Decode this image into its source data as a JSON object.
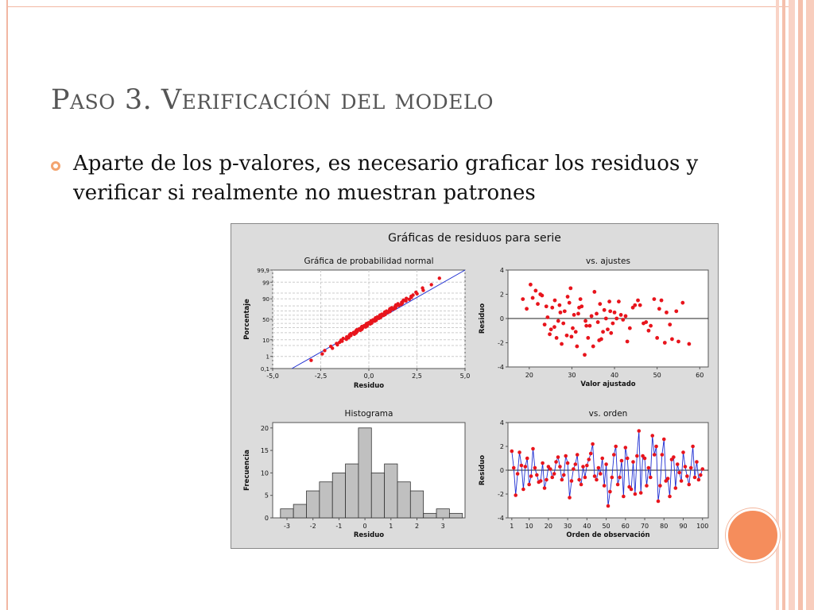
{
  "slide": {
    "title": "Paso 3. Verificación del modelo",
    "bullet_text": "Aparte de los p-valores, es necesario graficar los residuos y verificar si realmente no muestran patrones"
  },
  "colors": {
    "accent": "#f58d5c",
    "point": "#e8141c",
    "line": "#1f2fd2",
    "bar": "#c0c0c0"
  },
  "figure_title": "Gráficas de residuos para serie",
  "chart_data": [
    {
      "type": "scatter",
      "title": "Gráfica de probabilidad normal",
      "xlabel": "Residuo",
      "ylabel": "Porcentaje",
      "xlim": [
        -5,
        5
      ],
      "x_ticks": [
        "-5,0",
        "-2,5",
        "0,0",
        "2,5",
        "5,0"
      ],
      "y_ticks": [
        "0,1",
        "1",
        "10",
        "50",
        "90",
        "99",
        "99,9"
      ],
      "y_scale": "normal-probability",
      "grid": true,
      "fit_line": {
        "x": [
          -4.0,
          5.0
        ],
        "y": [
          0.1,
          99.9
        ]
      },
      "points": {
        "x_range": [
          -3.0,
          3.7
        ],
        "count": 100
      }
    },
    {
      "type": "scatter",
      "title": "vs. ajustes",
      "xlabel": "Valor ajustado",
      "ylabel": "Residuo",
      "xlim": [
        20,
        60
      ],
      "ylim": [
        -4,
        4
      ],
      "x_ticks": [
        "20",
        "30",
        "40",
        "50",
        "60"
      ],
      "y_ticks": [
        "-4",
        "-2",
        "0",
        "2",
        "4"
      ],
      "reference_line": 0,
      "x": [
        18.5,
        20.3,
        22.0,
        23.6,
        24.8,
        25.4,
        26.0,
        26.8,
        27.6,
        28.3,
        29.0,
        29.7,
        30.2,
        30.9,
        31.5,
        32.3,
        33.0,
        33.8,
        34.6,
        35.3,
        36.1,
        36.9,
        37.6,
        38.4,
        39.2,
        40.0,
        41.0,
        42.0,
        43.0,
        44.3,
        45.5,
        46.8,
        48.0,
        49.3,
        50.5,
        51.8,
        53.0,
        54.5,
        56.0,
        57.5,
        19.4,
        21.5,
        23.0,
        24.3,
        25.9,
        27.1,
        28.8,
        30.5,
        32.0,
        33.4,
        35.0,
        36.6,
        38.0,
        39.6,
        41.5,
        43.6,
        46.0,
        48.5,
        51.0,
        53.5,
        20.8,
        24.0,
        26.4,
        28.0,
        29.4,
        31.2,
        33.2,
        35.8,
        37.3,
        39.0,
        40.5,
        44.8,
        47.4,
        52.2,
        55.0,
        22.6,
        25.1,
        27.3,
        29.9,
        31.7,
        34.2,
        36.4,
        38.8,
        42.6,
        50.0
      ],
      "y": [
        1.6,
        2.8,
        1.2,
        -0.5,
        -1.3,
        0.9,
        1.5,
        -0.2,
        -2.1,
        0.6,
        1.8,
        2.5,
        -0.8,
        -1.1,
        0.4,
        1.0,
        -3.0,
        -1.6,
        0.2,
        2.2,
        -0.3,
        -1.7,
        0.7,
        -0.9,
        -1.2,
        0.5,
        1.4,
        -0.1,
        -1.9,
        0.9,
        1.5,
        -0.4,
        -1.0,
        1.6,
        0.8,
        -2.0,
        -0.5,
        0.6,
        1.3,
        -2.1,
        0.8,
        2.3,
        1.9,
        0.1,
        -0.7,
        1.1,
        -1.4,
        0.3,
        1.6,
        -0.6,
        -2.3,
        1.2,
        0.0,
        -0.4,
        0.3,
        -0.8,
        1.1,
        -0.6,
        1.5,
        -1.7,
        1.7,
        1.0,
        -1.6,
        -0.4,
        1.3,
        -2.3,
        -0.2,
        0.4,
        -1.1,
        0.6,
        0.0,
        1.1,
        -0.3,
        0.5,
        -1.9,
        2.0,
        -0.9,
        0.5,
        -1.5,
        0.9,
        -0.6,
        -1.8,
        1.4,
        0.2,
        -1.6
      ]
    },
    {
      "type": "bar",
      "title": "Histograma",
      "xlabel": "Residuo",
      "ylabel": "Frecuencia",
      "ylim": [
        0,
        20
      ],
      "x_ticks": [
        "-3",
        "-2",
        "-1",
        "0",
        "1",
        "2",
        "3"
      ],
      "y_ticks": [
        "0",
        "5",
        "10",
        "15",
        "20"
      ],
      "bin_width": 0.5,
      "bin_start": -3.25,
      "values": [
        2,
        3,
        6,
        8,
        10,
        12,
        20,
        10,
        12,
        8,
        6,
        1,
        2,
        1
      ]
    },
    {
      "type": "line",
      "title": "vs. orden",
      "xlabel": "Orden de observación",
      "ylabel": "Residuo",
      "xlim": [
        1,
        100
      ],
      "ylim": [
        -4,
        4
      ],
      "x_ticks": [
        "1",
        "10",
        "20",
        "30",
        "40",
        "50",
        "60",
        "70",
        "80",
        "90",
        "100"
      ],
      "y_ticks": [
        "-4",
        "-2",
        "0",
        "2",
        "4"
      ],
      "reference_line": 0,
      "x": [
        1,
        2,
        3,
        4,
        5,
        6,
        7,
        8,
        9,
        10,
        11,
        12,
        13,
        14,
        15,
        16,
        17,
        18,
        19,
        20,
        21,
        22,
        23,
        24,
        25,
        26,
        27,
        28,
        29,
        30,
        31,
        32,
        33,
        34,
        35,
        36,
        37,
        38,
        39,
        40,
        41,
        42,
        43,
        44,
        45,
        46,
        47,
        48,
        49,
        50,
        51,
        52,
        53,
        54,
        55,
        56,
        57,
        58,
        59,
        60,
        61,
        62,
        63,
        64,
        65,
        66,
        67,
        68,
        69,
        70,
        71,
        72,
        73,
        74,
        75,
        76,
        77,
        78,
        79,
        80,
        81,
        82,
        83,
        84,
        85,
        86,
        87,
        88,
        89,
        90,
        91,
        92,
        93,
        94,
        95,
        96,
        97,
        98,
        99,
        100
      ],
      "y": [
        1.6,
        0.2,
        -2.1,
        -0.3,
        1.5,
        0.4,
        -1.6,
        0.3,
        1.0,
        -1.2,
        -0.5,
        1.8,
        0.2,
        -0.4,
        -1.0,
        -0.9,
        0.6,
        -1.5,
        -0.8,
        0.3,
        0.1,
        -0.6,
        -0.3,
        0.7,
        1.1,
        0.3,
        -0.8,
        -0.4,
        1.2,
        0.6,
        -2.3,
        -0.9,
        0.1,
        0.5,
        1.3,
        -0.8,
        -1.2,
        0.3,
        -0.6,
        0.4,
        0.9,
        1.4,
        2.2,
        -0.5,
        -0.8,
        0.2,
        -0.3,
        1.0,
        -1.3,
        0.5,
        -3.0,
        -1.8,
        -0.6,
        1.3,
        2.0,
        -1.2,
        -0.6,
        0.8,
        -2.2,
        1.9,
        1.0,
        -1.4,
        -1.6,
        0.7,
        -2.0,
        1.2,
        3.3,
        -1.9,
        1.2,
        1.0,
        -1.3,
        0.2,
        -0.6,
        2.9,
        1.3,
        2.0,
        -2.6,
        -1.3,
        1.3,
        2.6,
        -0.9,
        -0.7,
        -2.2,
        0.9,
        1.1,
        -1.5,
        0.5,
        -0.2,
        -0.9,
        1.5,
        0.3,
        -0.5,
        -1.2,
        0.2,
        2.0,
        -0.6,
        0.7,
        -0.8,
        -0.4,
        0.1
      ]
    }
  ]
}
